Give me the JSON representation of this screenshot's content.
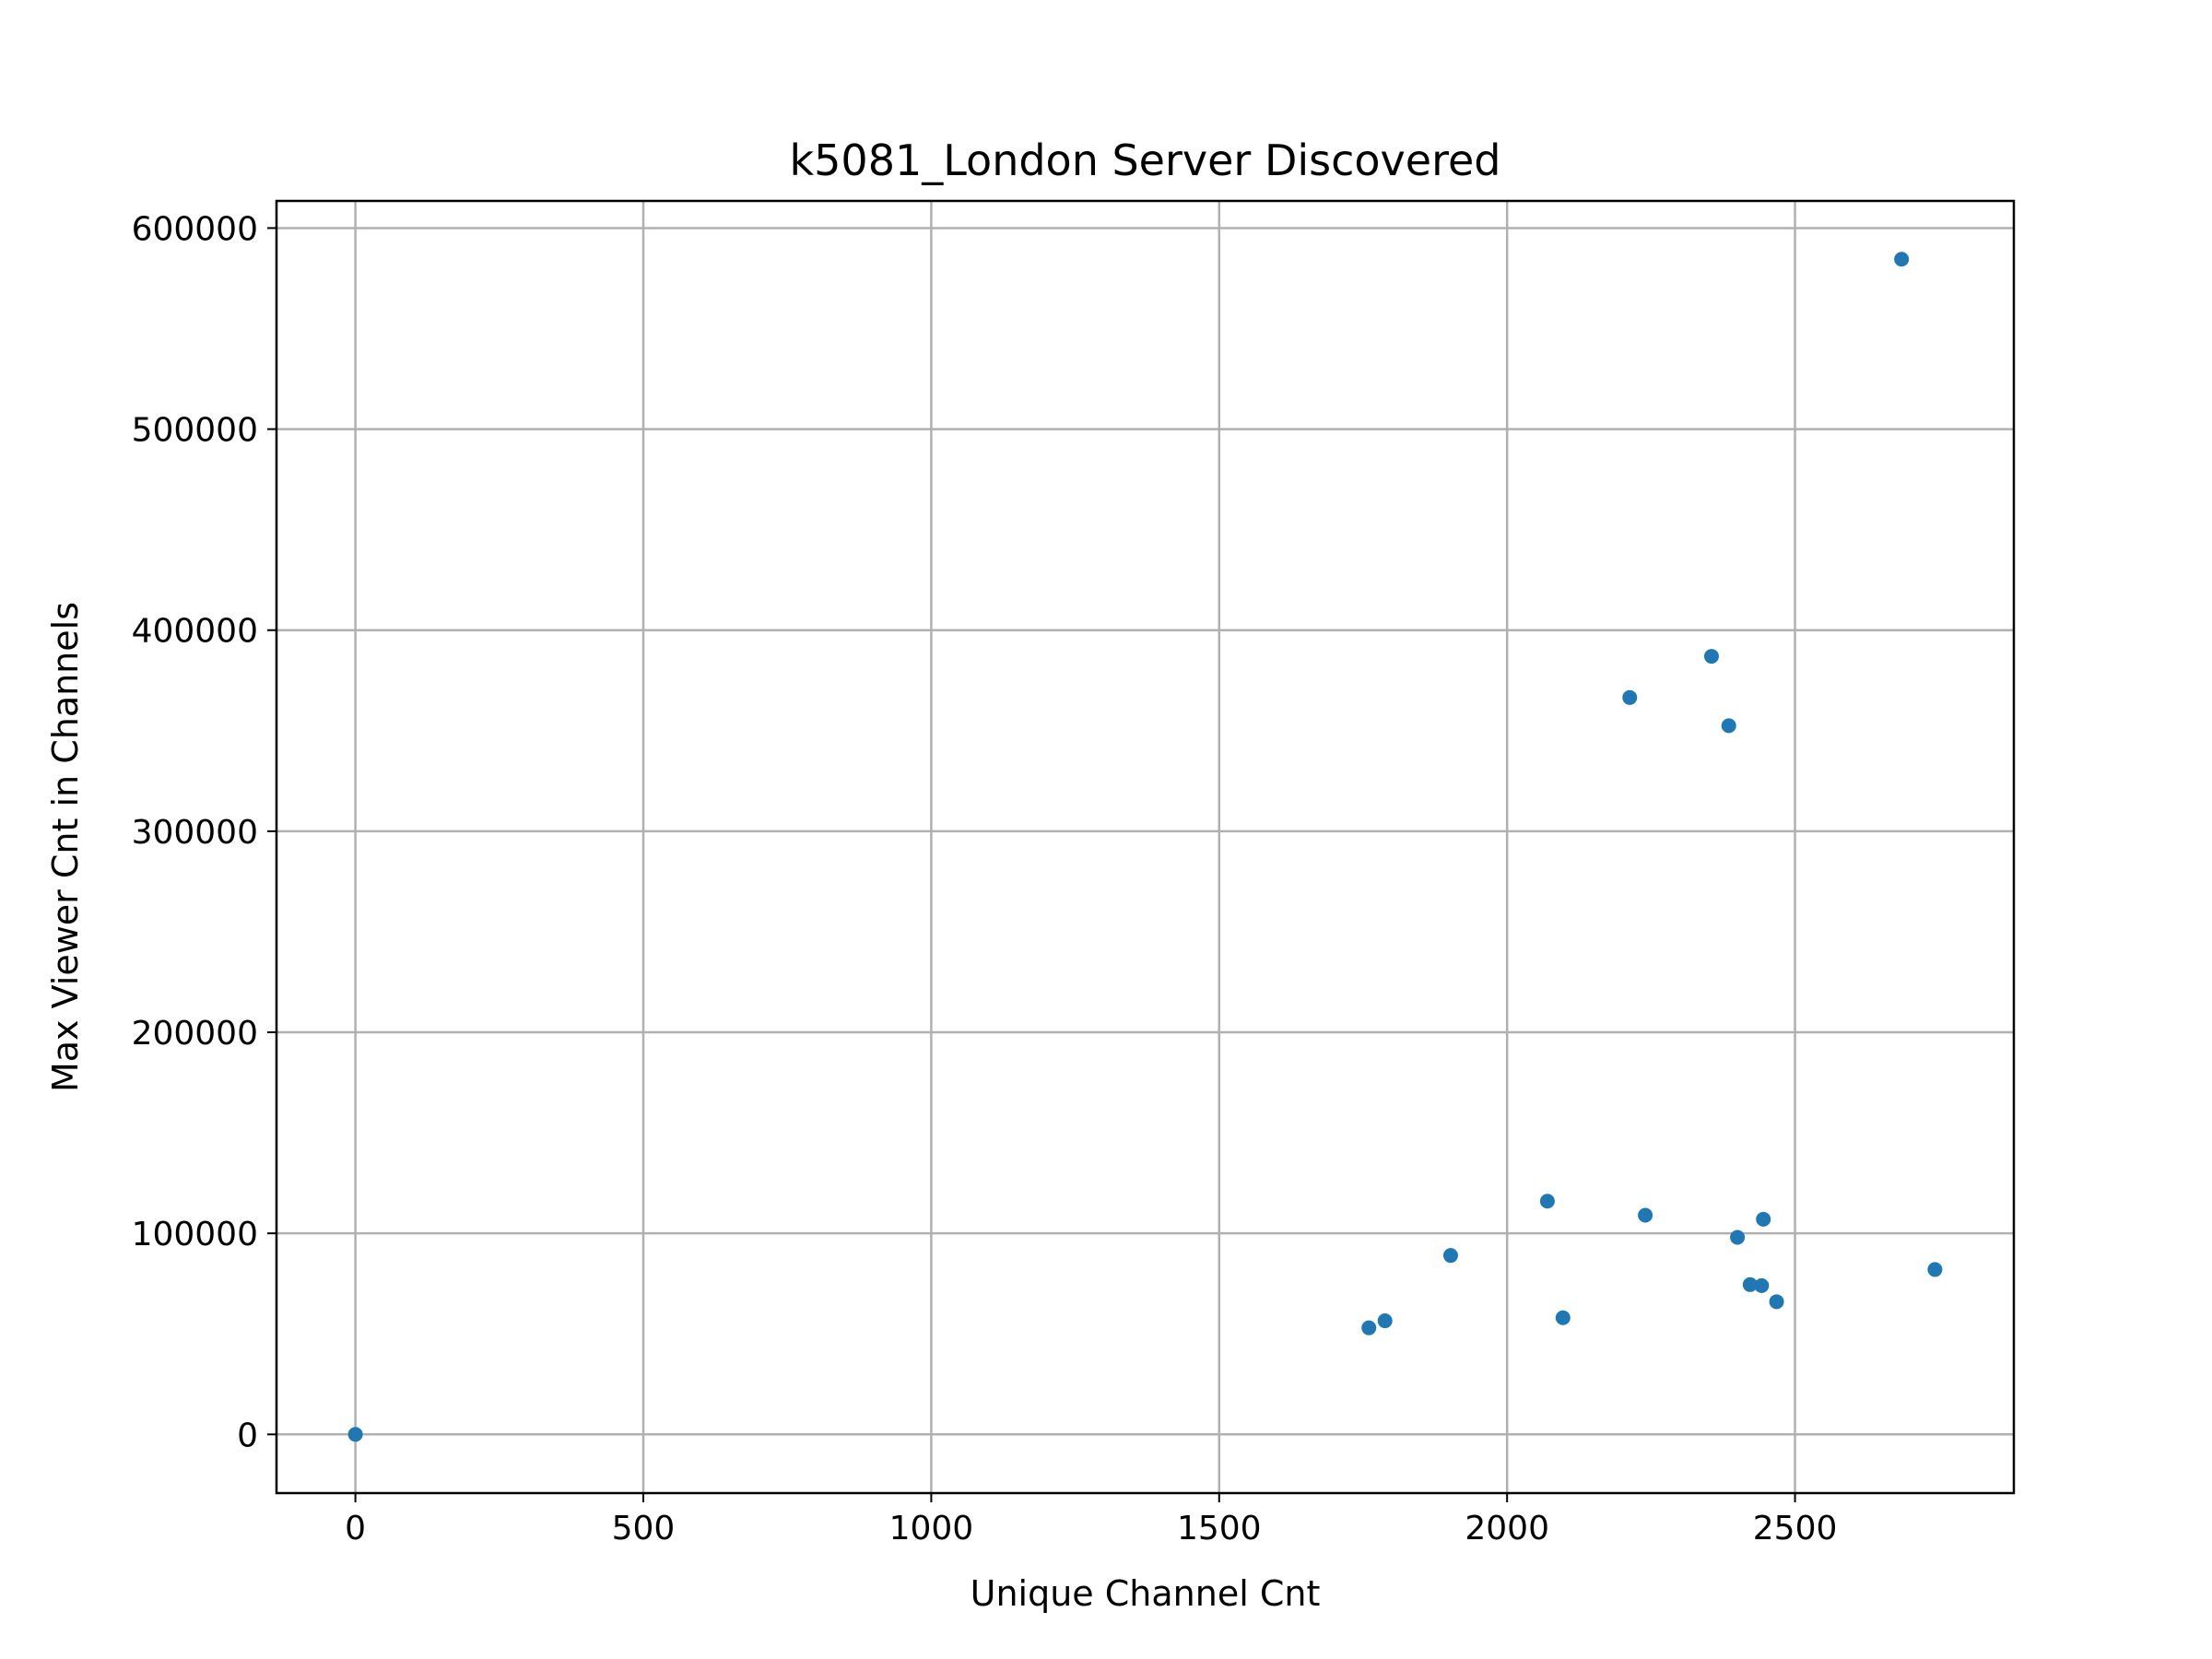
{
  "chart_data": {
    "type": "scatter",
    "title": "k5081_London Server Discovered",
    "xlabel": "Unique Channel Cnt",
    "ylabel": "Max Viewer Cnt in Channels",
    "xlim": [
      -137,
      2880
    ],
    "ylim": [
      -29200,
      613500
    ],
    "xticks": [
      0,
      500,
      1000,
      1500,
      2000,
      2500
    ],
    "yticks": [
      0,
      100000,
      200000,
      300000,
      400000,
      500000,
      600000
    ],
    "xtick_labels": [
      "0",
      "500",
      "1000",
      "1500",
      "2000",
      "2500"
    ],
    "ytick_labels": [
      "0",
      "100000",
      "200000",
      "300000",
      "400000",
      "500000",
      "600000"
    ],
    "grid": true,
    "marker_color": "#1f77b4",
    "points": [
      {
        "x": 0,
        "y": 0
      },
      {
        "x": 1760,
        "y": 53000
      },
      {
        "x": 1788,
        "y": 56500
      },
      {
        "x": 1902,
        "y": 89000
      },
      {
        "x": 2070,
        "y": 116000
      },
      {
        "x": 2097,
        "y": 58000
      },
      {
        "x": 2213,
        "y": 366500
      },
      {
        "x": 2240,
        "y": 109000
      },
      {
        "x": 2355,
        "y": 387000
      },
      {
        "x": 2385,
        "y": 352500
      },
      {
        "x": 2400,
        "y": 98000
      },
      {
        "x": 2422,
        "y": 74500
      },
      {
        "x": 2442,
        "y": 74000
      },
      {
        "x": 2445,
        "y": 107000
      },
      {
        "x": 2468,
        "y": 66000
      },
      {
        "x": 2685,
        "y": 584500
      },
      {
        "x": 2743,
        "y": 82000
      }
    ]
  }
}
